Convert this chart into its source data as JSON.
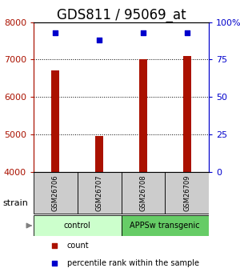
{
  "title": "GDS811 / 95069_at",
  "samples": [
    "GSM26706",
    "GSM26707",
    "GSM26708",
    "GSM26709"
  ],
  "counts": [
    6700,
    4950,
    7000,
    7100
  ],
  "percentiles": [
    93,
    88,
    93,
    93
  ],
  "ylim_left": [
    4000,
    8000
  ],
  "ylim_right": [
    0,
    100
  ],
  "yticks_left": [
    4000,
    5000,
    6000,
    7000,
    8000
  ],
  "yticks_right": [
    0,
    25,
    50,
    75,
    100
  ],
  "ytick_labels_right": [
    "0",
    "25",
    "50",
    "75",
    "100%"
  ],
  "bar_color": "#aa1100",
  "dot_color": "#0000cc",
  "bar_width": 0.18,
  "groups": [
    {
      "label": "control",
      "samples": [
        0,
        1
      ],
      "color": "#ccffcc"
    },
    {
      "label": "APPSw transgenic",
      "samples": [
        2,
        3
      ],
      "color": "#66cc66"
    }
  ],
  "strain_label": "strain",
  "legend_items": [
    {
      "color": "#aa1100",
      "label": "count"
    },
    {
      "color": "#0000cc",
      "label": "percentile rank within the sample"
    }
  ],
  "sample_box_color": "#cccccc",
  "title_fontsize": 12,
  "tick_fontsize": 8,
  "label_fontsize": 8
}
